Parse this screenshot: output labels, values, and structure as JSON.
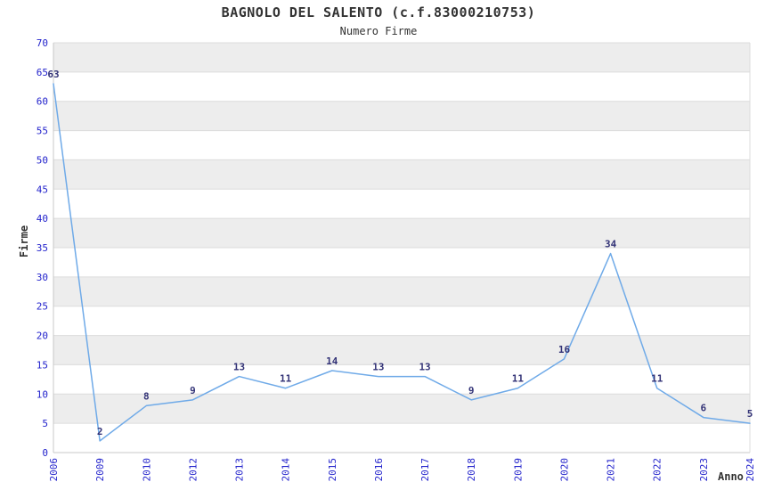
{
  "chart_data": {
    "type": "line",
    "title": "BAGNOLO DEL SALENTO (c.f.83000210753)",
    "subtitle": "Numero Firme",
    "xlabel": "Anno",
    "ylabel": "Firme",
    "categories": [
      "2006",
      "2009",
      "2010",
      "2012",
      "2013",
      "2014",
      "2015",
      "2016",
      "2017",
      "2018",
      "2019",
      "2020",
      "2021",
      "2022",
      "2023",
      "2024"
    ],
    "values": [
      63,
      2,
      8,
      9,
      13,
      11,
      14,
      13,
      13,
      9,
      11,
      16,
      34,
      11,
      6,
      5
    ],
    "ylim": [
      0,
      70
    ],
    "ytick_interval": 5,
    "grid": true,
    "legend": false,
    "colors": {
      "line": "#6faae8",
      "tick_label": "#2424cc",
      "data_label": "#333377",
      "band": "#ededed",
      "grid_line": "#dcdcdc",
      "axis_line": "#c8c8c8",
      "text": "#333333",
      "background": "#ffffff"
    }
  }
}
